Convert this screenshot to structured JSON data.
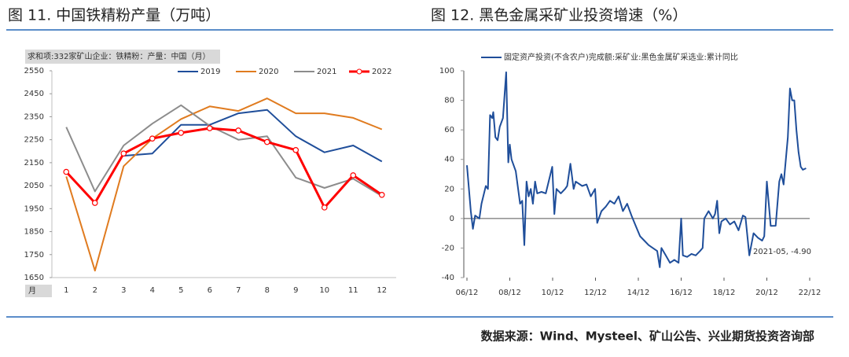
{
  "header": {
    "left": "图 11. 中国铁精粉产量（万吨）",
    "right": "图 12. 黑色金属采矿业投资增速（%）"
  },
  "source": "数据来源：Wind、Mysteel、矿山公告、兴业期货投资咨询部",
  "chart_data": [
    {
      "type": "line",
      "subtitle": "求和项:332家矿山企业：铁精粉：产量：中国（月）",
      "x_label": "月",
      "categories": [
        "1",
        "2",
        "3",
        "4",
        "5",
        "6",
        "7",
        "8",
        "9",
        "10",
        "11",
        "12"
      ],
      "ylim": [
        1650,
        2550
      ],
      "yticks": [
        1650,
        1750,
        1850,
        1950,
        2050,
        2150,
        2250,
        2350,
        2450,
        2550
      ],
      "legend": "top",
      "series": [
        {
          "name": "2019",
          "color": "#1f4e9a",
          "values": [
            null,
            null,
            2180,
            2190,
            2315,
            2315,
            2365,
            2380,
            2265,
            2195,
            2225,
            2155
          ]
        },
        {
          "name": "2020",
          "color": "#e07b1f",
          "values": [
            2090,
            1680,
            2135,
            2255,
            2340,
            2395,
            2375,
            2430,
            2365,
            2365,
            2345,
            2295
          ]
        },
        {
          "name": "2021",
          "color": "#8c8c8c",
          "values": [
            2305,
            2025,
            2225,
            2320,
            2400,
            2310,
            2250,
            2265,
            2085,
            2040,
            2080,
            2005
          ]
        },
        {
          "name": "2022",
          "color": "#ff0000",
          "markers": true,
          "values": [
            2110,
            1975,
            2190,
            2255,
            2280,
            2300,
            2290,
            2240,
            2205,
            1955,
            2095,
            2010
          ]
        }
      ]
    },
    {
      "type": "line",
      "annotation": "2021-05, -4.90",
      "xlim": [
        2006.92,
        2022.92
      ],
      "xticks": [
        {
          "value": 2006.92,
          "label": "06/12"
        },
        {
          "value": 2008.92,
          "label": "08/12"
        },
        {
          "value": 2010.92,
          "label": "10/12"
        },
        {
          "value": 2012.92,
          "label": "12/12"
        },
        {
          "value": 2014.92,
          "label": "14/12"
        },
        {
          "value": 2016.92,
          "label": "16/12"
        },
        {
          "value": 2018.92,
          "label": "18/12"
        },
        {
          "value": 2020.92,
          "label": "20/12"
        },
        {
          "value": 2022.92,
          "label": "22/12"
        }
      ],
      "ylim": [
        -40,
        100
      ],
      "yticks": [
        -40,
        -20,
        0,
        20,
        40,
        60,
        80,
        100
      ],
      "legend": "top",
      "x": [
        2006.92,
        2007.1,
        2007.2,
        2007.3,
        2007.5,
        2007.6,
        2007.8,
        2007.9,
        2008.0,
        2008.1,
        2008.15,
        2008.25,
        2008.35,
        2008.45,
        2008.6,
        2008.75,
        2008.85,
        2008.92,
        2009.0,
        2009.2,
        2009.4,
        2009.5,
        2009.6,
        2009.7,
        2009.8,
        2009.9,
        2010.0,
        2010.1,
        2010.2,
        2010.4,
        2010.6,
        2010.9,
        2011.0,
        2011.1,
        2011.3,
        2011.5,
        2011.6,
        2011.75,
        2011.9,
        2012.0,
        2012.3,
        2012.5,
        2012.7,
        2012.9,
        2013.0,
        2013.2,
        2013.4,
        2013.6,
        2013.8,
        2014.0,
        2014.2,
        2014.4,
        2014.6,
        2014.8,
        2015.0,
        2015.2,
        2015.4,
        2015.6,
        2015.8,
        2015.92,
        2016.0,
        2016.2,
        2016.4,
        2016.6,
        2016.8,
        2016.92,
        2017.0,
        2017.2,
        2017.4,
        2017.6,
        2017.8,
        2017.92,
        2018.0,
        2018.2,
        2018.4,
        2018.5,
        2018.6,
        2018.7,
        2018.8,
        2019.0,
        2019.2,
        2019.4,
        2019.6,
        2019.8,
        2019.92,
        2020.1,
        2020.3,
        2020.5,
        2020.7,
        2020.8,
        2020.92,
        2021.1,
        2021.33,
        2021.5,
        2021.6,
        2021.7,
        2021.9,
        2022.0,
        2022.1,
        2022.2,
        2022.3,
        2022.4,
        2022.5,
        2022.6,
        2022.75
      ],
      "series": [
        {
          "name": "固定资产投资(不含农户)完成额:采矿业:黑色金属矿采选业:累计同比",
          "color": "#1f4e9a",
          "values": [
            36,
            5,
            -7,
            2,
            0,
            10,
            22,
            20,
            70,
            68,
            72,
            55,
            53,
            62,
            68,
            99,
            38,
            50,
            40,
            32,
            10,
            12,
            -18,
            25,
            15,
            20,
            10,
            25,
            17,
            18,
            17,
            35,
            3,
            20,
            17,
            20,
            22,
            37,
            20,
            25,
            22,
            23,
            15,
            20,
            -3,
            5,
            8,
            12,
            10,
            15,
            5,
            10,
            2,
            -5,
            -12,
            -15,
            -18,
            -20,
            -22,
            -33,
            -20,
            -25,
            -30,
            -28,
            -30,
            0,
            -25,
            -26,
            -24,
            -25,
            -22,
            -20,
            0,
            5,
            0,
            3,
            12,
            -10,
            -2,
            0,
            -4,
            -2,
            -8,
            2,
            1,
            -25,
            -10,
            -13,
            -15,
            -12,
            25,
            -5,
            -4.9,
            25,
            30,
            23,
            55,
            88,
            80,
            80,
            60,
            45,
            35,
            33,
            34
          ]
        }
      ]
    }
  ]
}
